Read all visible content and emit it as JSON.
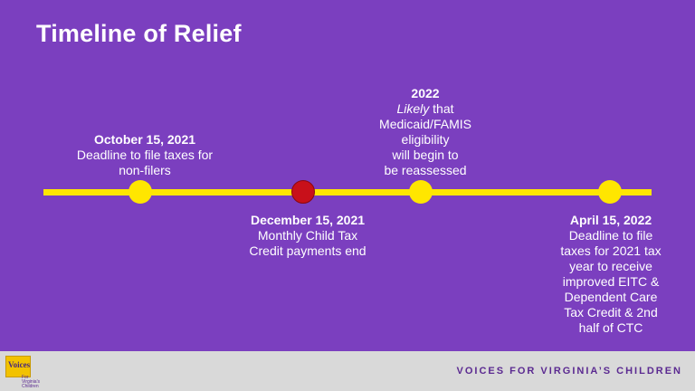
{
  "slide": {
    "title": "Timeline of Relief"
  },
  "events": [
    {
      "date": "October 15, 2021",
      "lines": [
        "Deadline to file taxes for",
        "non-filers"
      ]
    },
    {
      "date": "December 15, 2021",
      "lines": [
        "Monthly Child Tax",
        "Credit payments end"
      ]
    },
    {
      "date": "2022",
      "lines_italic_prefix": "Likely",
      "lines_first_rest": " that",
      "lines": [
        "Medicaid/FAMIS",
        "eligibility",
        "will begin to",
        "be reassessed"
      ]
    },
    {
      "date": "April 15, 2022",
      "lines": [
        "Deadline to file",
        "taxes for 2021 tax",
        "year to receive",
        "improved EITC &",
        "Dependent Care",
        "Tax Credit & 2nd",
        "half of CTC"
      ]
    }
  ],
  "footer": {
    "brand": "VOICES FOR VIRGINIA’S CHILDREN",
    "logo_word": "Voices",
    "logo_sub": "For Virginia's Children"
  },
  "colors": {
    "background": "#7b3fbf",
    "timeline": "#ffe600",
    "milestone_current": "#c8101a",
    "footer": "#d9d9d9"
  }
}
